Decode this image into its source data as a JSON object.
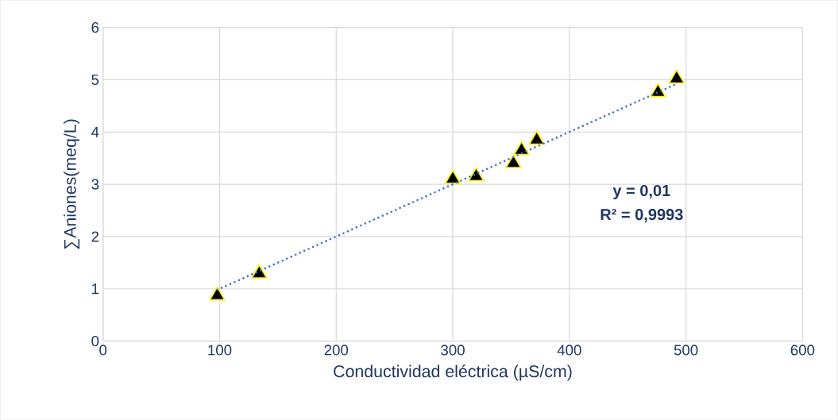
{
  "chart_data": {
    "type": "scatter",
    "xlabel": "Conductividad eléctrica (µS/cm)",
    "ylabel": "∑Aniones(meq/L)",
    "xlim": [
      0,
      600
    ],
    "ylim": [
      0,
      6
    ],
    "xticks": [
      0,
      100,
      200,
      300,
      400,
      500,
      600
    ],
    "yticks": [
      0,
      1,
      2,
      3,
      4,
      5,
      6
    ],
    "grid": true,
    "marker": "triangle",
    "series": [
      {
        "type": "scatter",
        "color": "#000000",
        "x": [
          98,
          134,
          300,
          320,
          352,
          359,
          372,
          476,
          492
        ],
        "values": [
          0.87,
          1.29,
          3.1,
          3.15,
          3.4,
          3.65,
          3.85,
          4.76,
          5.02
        ]
      },
      {
        "type": "line",
        "color": "#4472c4",
        "marker": "none",
        "line_style": "dotted",
        "x": [
          98,
          492
        ],
        "values": [
          0.98,
          4.92
        ]
      }
    ],
    "annotations": [
      "y = 0,01",
      "R² = 0,9993"
    ]
  }
}
